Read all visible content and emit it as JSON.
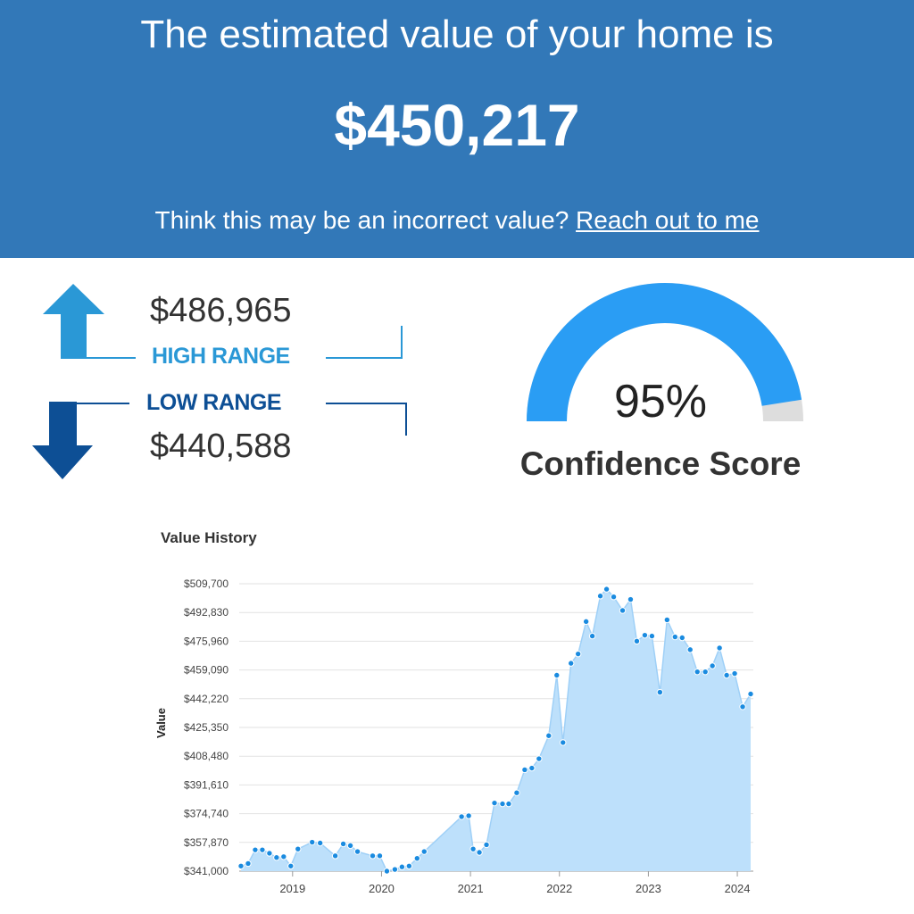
{
  "hero": {
    "headline": "The estimated value of your home is",
    "value": "$450,217",
    "note_prefix": "Think this may be an incorrect value?",
    "link_label": "Reach out to me"
  },
  "range": {
    "high_value": "$486,965",
    "high_label": "HIGH RANGE",
    "low_value": "$440,588",
    "low_label": "LOW RANGE"
  },
  "confidence": {
    "percent_text": "95%",
    "percent": 95,
    "label": "Confidence Score"
  },
  "colors": {
    "hero_bg": "#3278b8",
    "high_arrow": "#2a98d6",
    "low_arrow": "#0d4f95",
    "gauge_fill": "#2a9df4",
    "gauge_track": "#dddddd",
    "area_fill": "#bde0fb",
    "marker": "#1a8be0"
  },
  "icons": {
    "high": "arrow-up-icon",
    "low": "arrow-down-icon"
  },
  "chart_data": {
    "type": "area",
    "title": "Value History",
    "ylabel": "Value",
    "xlabel": "",
    "ylim": [
      341000,
      509700
    ],
    "yticks": [
      "$341,000",
      "$357,870",
      "$374,740",
      "$391,610",
      "$408,480",
      "$425,350",
      "$442,220",
      "$459,090",
      "$475,960",
      "$492,830",
      "$509,700"
    ],
    "xticks": [
      "2019",
      "2020",
      "2021",
      "2022",
      "2023",
      "2024"
    ],
    "xlim": [
      2018.4,
      2024.18
    ],
    "grid": true,
    "legend": "none",
    "points": [
      [
        2018.42,
        344000
      ],
      [
        2018.5,
        345500
      ],
      [
        2018.58,
        353500
      ],
      [
        2018.66,
        353500
      ],
      [
        2018.74,
        351500
      ],
      [
        2018.82,
        349000
      ],
      [
        2018.9,
        349500
      ],
      [
        2018.98,
        344000
      ],
      [
        2019.06,
        354000
      ],
      [
        2019.22,
        358000
      ],
      [
        2019.31,
        357500
      ],
      [
        2019.48,
        350000
      ],
      [
        2019.57,
        357000
      ],
      [
        2019.65,
        356000
      ],
      [
        2019.73,
        352500
      ],
      [
        2019.9,
        350000
      ],
      [
        2019.98,
        350000
      ],
      [
        2020.06,
        341000
      ],
      [
        2020.15,
        342000
      ],
      [
        2020.23,
        343500
      ],
      [
        2020.31,
        344000
      ],
      [
        2020.4,
        348500
      ],
      [
        2020.48,
        352500
      ],
      [
        2020.9,
        373000
      ],
      [
        2020.98,
        373500
      ],
      [
        2021.03,
        354000
      ],
      [
        2021.1,
        352000
      ],
      [
        2021.18,
        356500
      ],
      [
        2021.27,
        381000
      ],
      [
        2021.36,
        380500
      ],
      [
        2021.43,
        380500
      ],
      [
        2021.52,
        387000
      ],
      [
        2021.61,
        400500
      ],
      [
        2021.69,
        401500
      ],
      [
        2021.77,
        407000
      ],
      [
        2021.88,
        420500
      ],
      [
        2021.97,
        456000
      ],
      [
        2022.04,
        416500
      ],
      [
        2022.13,
        463000
      ],
      [
        2022.21,
        468500
      ],
      [
        2022.3,
        487500
      ],
      [
        2022.37,
        479000
      ],
      [
        2022.46,
        502500
      ],
      [
        2022.53,
        506500
      ],
      [
        2022.61,
        502000
      ],
      [
        2022.71,
        494000
      ],
      [
        2022.8,
        500500
      ],
      [
        2022.87,
        476000
      ],
      [
        2022.96,
        479500
      ],
      [
        2023.04,
        479000
      ],
      [
        2023.13,
        446000
      ],
      [
        2023.21,
        488500
      ],
      [
        2023.3,
        478500
      ],
      [
        2023.38,
        478000
      ],
      [
        2023.47,
        471000
      ],
      [
        2023.55,
        458000
      ],
      [
        2023.64,
        458000
      ],
      [
        2023.72,
        461500
      ],
      [
        2023.8,
        472000
      ],
      [
        2023.88,
        456000
      ],
      [
        2023.97,
        457000
      ],
      [
        2024.06,
        437500
      ],
      [
        2024.15,
        445000
      ]
    ]
  }
}
